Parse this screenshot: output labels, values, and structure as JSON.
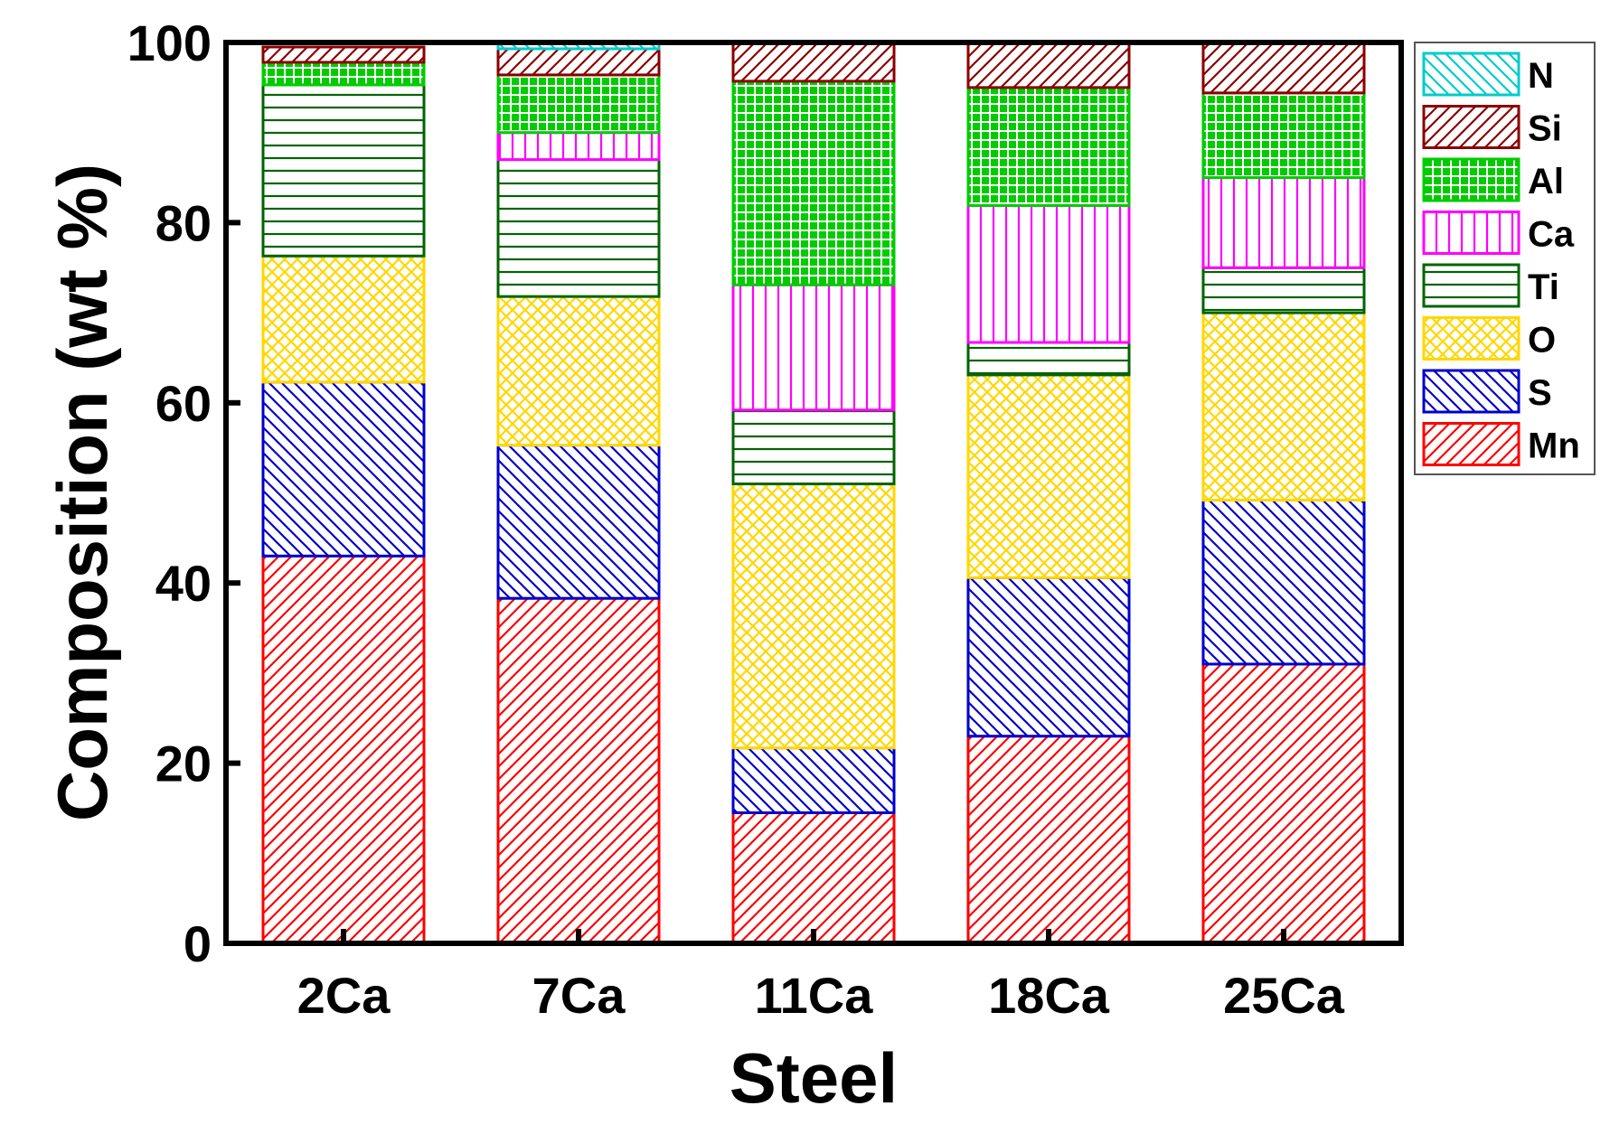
{
  "chart_data": {
    "type": "bar",
    "stacked": true,
    "title": "",
    "xlabel": "Steel",
    "ylabel": "Composition (wt %)",
    "ylim": [
      0,
      100
    ],
    "yticks": [
      0,
      20,
      40,
      60,
      80,
      100
    ],
    "categories": [
      "2Ca",
      "7Ca",
      "11Ca",
      "18Ca",
      "25Ca"
    ],
    "legend_position": "right",
    "series": [
      {
        "name": "Mn",
        "color": "#ff0000",
        "pattern": "diag-right",
        "values": [
          43.0,
          38.3,
          14.5,
          23.0,
          31.0
        ]
      },
      {
        "name": "S",
        "color": "#0000cc",
        "pattern": "diag-left",
        "values": [
          19.3,
          17.0,
          7.2,
          17.6,
          18.2
        ]
      },
      {
        "name": "O",
        "color": "#ffd700",
        "pattern": "crosshatch-diag",
        "values": [
          14.0,
          16.5,
          29.3,
          22.5,
          20.8
        ]
      },
      {
        "name": "Ti",
        "color": "#006400",
        "pattern": "horizontal",
        "values": [
          19.0,
          15.2,
          8.2,
          3.6,
          5.0
        ]
      },
      {
        "name": "Ca",
        "color": "#ff00ff",
        "pattern": "vertical",
        "values": [
          0.0,
          3.0,
          13.9,
          15.2,
          10.0
        ]
      },
      {
        "name": "Al",
        "color": "#00cc00",
        "pattern": "grid",
        "values": [
          2.5,
          6.4,
          22.6,
          13.1,
          9.4
        ]
      },
      {
        "name": "Si",
        "color": "#8b0000",
        "pattern": "diag-right",
        "values": [
          1.7,
          2.9,
          4.3,
          5.0,
          5.6
        ]
      },
      {
        "name": "N",
        "color": "#00cccc",
        "pattern": "diag-left",
        "values": [
          0.0,
          0.7,
          0.0,
          0.0,
          0.0
        ]
      }
    ],
    "legend_order": [
      "N",
      "Si",
      "Al",
      "Ca",
      "Ti",
      "O",
      "S",
      "Mn"
    ],
    "grid": false
  }
}
